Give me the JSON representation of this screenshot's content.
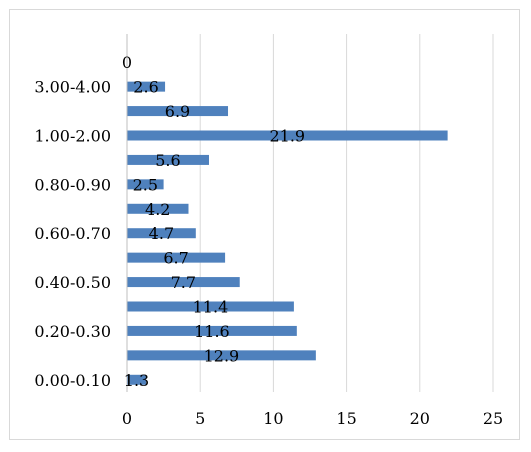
{
  "chart_data": {
    "type": "bar",
    "orientation": "horizontal",
    "title": "",
    "xlabel": "",
    "ylabel": "",
    "xlim": [
      0,
      25
    ],
    "xticks": [
      "0",
      "5",
      "10",
      "15",
      "20",
      "25"
    ],
    "grid": "vertical",
    "legend": "none",
    "bar_color": "#4f81bd",
    "categories": [
      "0.00-0.10",
      "",
      "0.20-0.30",
      "",
      "0.40-0.50",
      "",
      "0.60-0.70",
      "",
      "0.80-0.90",
      "",
      "1.00-2.00",
      "",
      "3.00-4.00",
      ""
    ],
    "values": [
      1.3,
      12.9,
      11.6,
      11.4,
      7.7,
      6.7,
      4.7,
      4.2,
      2.5,
      5.6,
      21.9,
      6.9,
      2.6,
      0
    ],
    "data_labels": [
      "1.3",
      "12.9",
      "11.6",
      "11.4",
      "7.7",
      "6.7",
      "4.7",
      "4.2",
      "2.5",
      "5.6",
      "21.9",
      "6.9",
      "2.6",
      "0"
    ]
  }
}
